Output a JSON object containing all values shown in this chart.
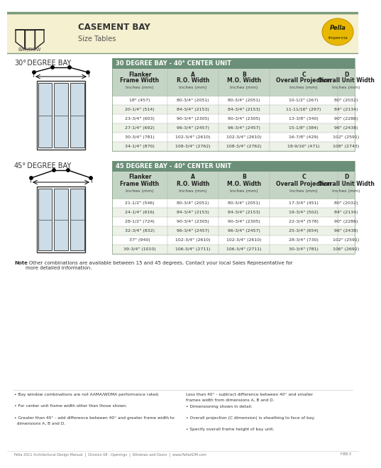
{
  "title": "CASEMENT BAY",
  "subtitle": "Size Tables",
  "header_bg": "#f5f0d0",
  "table1_header": "30 DEGREE BAY - 40° CENTER UNIT",
  "table2_header": "45 DEGREE BAY - 40° CENTER UNIT",
  "table_header_bg": "#6b8f78",
  "col_header_bg": "#c5d5c5",
  "row_odd_bg": "#ffffff",
  "row_even_bg": "#edf2e8",
  "col_headers_line1": [
    "Flanker",
    "A",
    "B",
    "C",
    "D"
  ],
  "col_headers_line2": [
    "Frame Width",
    "R.O. Width",
    "M.O. Width",
    "Overall Projection",
    "Overall Unit Width"
  ],
  "col_headers_line3": [
    "Inches (mm)",
    "Inches (mm)",
    "Inches (mm)",
    "Inches (mm)",
    "Inches (mm)"
  ],
  "table1_rows": [
    [
      "18\" (457)",
      "80-3/4\" (2051)",
      "80-3/4\" (2051)",
      "10-1/2\" (267)",
      "80\" (2032)"
    ],
    [
      "20-1/4\" (514)",
      "84-3/4\" (2153)",
      "84-3/4\" (2153)",
      "11-11/16\" (297)",
      "84\" (2134)"
    ],
    [
      "23-3/4\" (603)",
      "90-3/4\" (2305)",
      "90-3/4\" (2305)",
      "13-3/8\" (340)",
      "90\" (2286)"
    ],
    [
      "27-1/4\" (692)",
      "96-3/4\" (2457)",
      "96-3/4\" (2457)",
      "15-1/8\" (384)",
      "96\" (2438)"
    ],
    [
      "30-3/4\" (781)",
      "102-3/4\" (2610)",
      "102-3/4\" (2610)",
      "16-7/8\" (429)",
      "102\" (2591)"
    ],
    [
      "34-1/4\" (870)",
      "108-3/4\" (2762)",
      "108-3/4\" (2762)",
      "18-9/16\" (471)",
      "108\" (2743)"
    ]
  ],
  "table2_rows": [
    [
      "21-1/2\" (546)",
      "80-3/4\" (2051)",
      "80-3/4\" (2051)",
      "17-3/4\" (451)",
      "80\" (2032)"
    ],
    [
      "24-1/4\" (616)",
      "84-3/4\" (2153)",
      "84-3/4\" (2153)",
      "19-3/4\" (502)",
      "84\" (2134)"
    ],
    [
      "28-1/2\" (724)",
      "90-3/4\" (2305)",
      "90-3/4\" (2305)",
      "22-3/4\" (578)",
      "90\" (2286)"
    ],
    [
      "32-3/4\" (832)",
      "96-3/4\" (2457)",
      "96-3/4\" (2457)",
      "25-3/4\" (654)",
      "96\" (2438)"
    ],
    [
      "37\" (940)",
      "102-3/4\" (2610)",
      "102-3/4\" (2610)",
      "28-3/4\" (730)",
      "102\" (2591)"
    ],
    [
      "39-3/4\" (1010)",
      "106-3/4\" (2711)",
      "106-3/4\" (2711)",
      "30-3/4\" (781)",
      "106\" (2692)"
    ]
  ],
  "note_bold": "Note",
  "note_text": ": Other combinations are available between 15 and 45 degrees. Contact your local Sales Representative for\nmore detailed information.",
  "bullets_left": [
    "• Bay window combinations are not AAMA/WDMA performance rated.",
    "• For center unit frame width other than those shown.",
    "• Greater than 40° - add difference between 40° and greater frame width to\n  dimensions A, B and D."
  ],
  "bullets_right": [
    "Less than 40° - subtract difference between 40° and smaller\nframes width from dimensions A, B and D.",
    "• Dimensioning shown in detail.",
    "• Overall projection (C dimension) is sheathing to face of bay.",
    "• Specify overall frame height of bay unit."
  ],
  "footer_text": "Pella 2011 Architectural Design Manual  |  Division 08 : Openings  |  Windows and Doors  |  www.PellaADM.com",
  "page_ref": "F-BB-3",
  "bg_color": "#ffffff",
  "top_line_color": "#7a9a78",
  "mid_line_color": "#aaaaaa"
}
